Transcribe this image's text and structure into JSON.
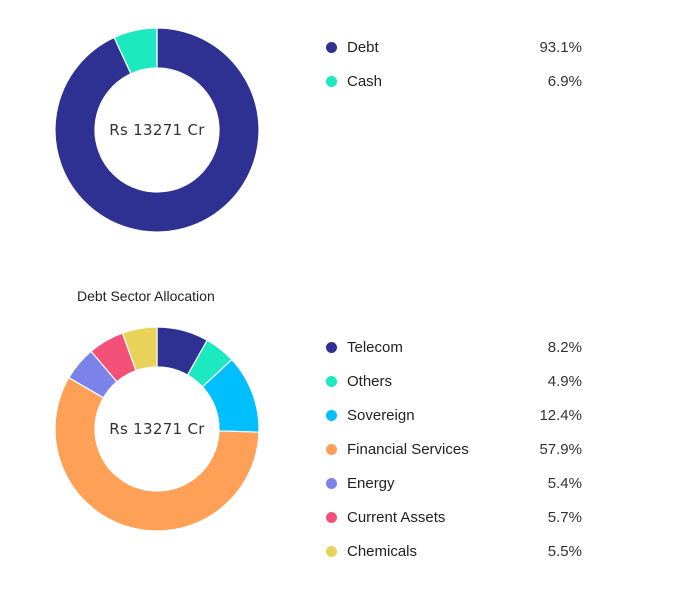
{
  "chart_data": [
    {
      "type": "pie",
      "subtype": "donut",
      "center_label": "Rs 13271 Cr",
      "slices": [
        {
          "label": "Debt",
          "value": 93.1,
          "display": "93.1%",
          "color": "#2e3192"
        },
        {
          "label": "Cash",
          "value": 6.9,
          "display": "6.9%",
          "color": "#1de9c0"
        }
      ],
      "legend": "right"
    },
    {
      "type": "pie",
      "subtype": "donut",
      "title": "Debt Sector Allocation",
      "center_label": "Rs 13271 Cr",
      "slices": [
        {
          "label": "Telecom",
          "value": 8.2,
          "display": "8.2%",
          "color": "#2e3192"
        },
        {
          "label": "Others",
          "value": 4.9,
          "display": "4.9%",
          "color": "#1de9c0"
        },
        {
          "label": "Sovereign",
          "value": 12.4,
          "display": "12.4%",
          "color": "#00bfff"
        },
        {
          "label": "Financial Services",
          "value": 57.9,
          "display": "57.9%",
          "color": "#ffa057"
        },
        {
          "label": "Energy",
          "value": 5.4,
          "display": "5.4%",
          "color": "#7b83eb"
        },
        {
          "label": "Current Assets",
          "value": 5.7,
          "display": "5.7%",
          "color": "#f45179"
        },
        {
          "label": "Chemicals",
          "value": 5.5,
          "display": "5.5%",
          "color": "#e8d25a"
        }
      ],
      "legend": "right"
    }
  ]
}
